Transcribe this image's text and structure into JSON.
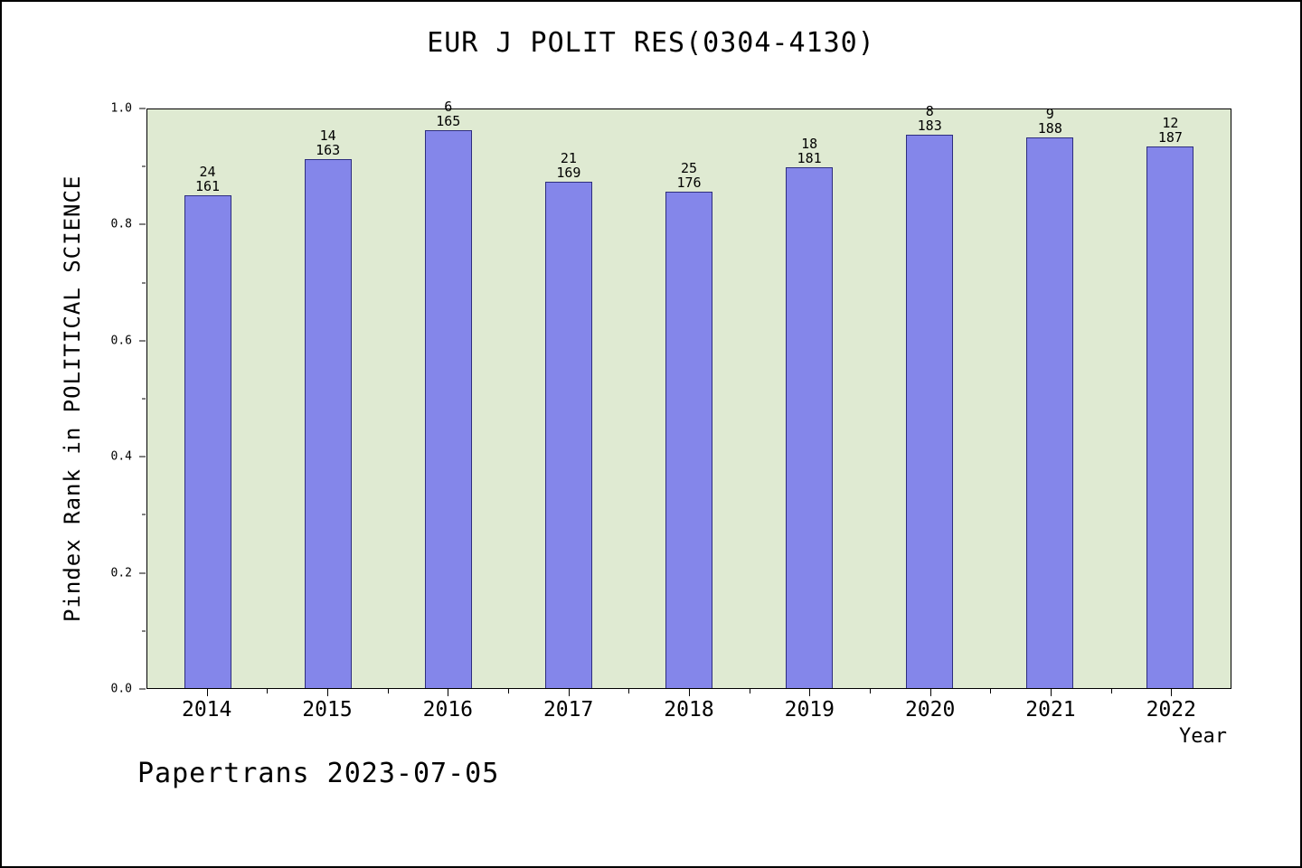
{
  "chart_data": {
    "type": "bar",
    "title": "EUR J POLIT RES(0304-4130)",
    "xlabel": "Year",
    "ylabel": "Pindex Rank in POLITICAL SCIENCE",
    "ylim": [
      0.0,
      1.0
    ],
    "yticks": [
      0.0,
      0.2,
      0.4,
      0.6,
      0.8,
      1.0
    ],
    "categories": [
      "2014",
      "2015",
      "2016",
      "2017",
      "2018",
      "2019",
      "2020",
      "2021",
      "2022"
    ],
    "bars": [
      {
        "year": "2014",
        "rank": 24,
        "total": 161,
        "value": 0.8509
      },
      {
        "year": "2015",
        "rank": 14,
        "total": 163,
        "value": 0.9141
      },
      {
        "year": "2016",
        "rank": 6,
        "total": 165,
        "value": 0.9636
      },
      {
        "year": "2017",
        "rank": 21,
        "total": 169,
        "value": 0.8757
      },
      {
        "year": "2018",
        "rank": 25,
        "total": 176,
        "value": 0.858
      },
      {
        "year": "2019",
        "rank": 18,
        "total": 181,
        "value": 0.9006
      },
      {
        "year": "2020",
        "rank": 8,
        "total": 183,
        "value": 0.9563
      },
      {
        "year": "2021",
        "rank": 9,
        "total": 188,
        "value": 0.9521
      },
      {
        "year": "2022",
        "rank": 12,
        "total": 187,
        "value": 0.9358
      }
    ],
    "bar_color": "#8486ea",
    "bar_edge_color": "#2e2e7e",
    "plot_bg": "#dfead2",
    "grid": false,
    "legend": "none"
  },
  "footer": {
    "text": "Papertrans 2023-07-05"
  }
}
